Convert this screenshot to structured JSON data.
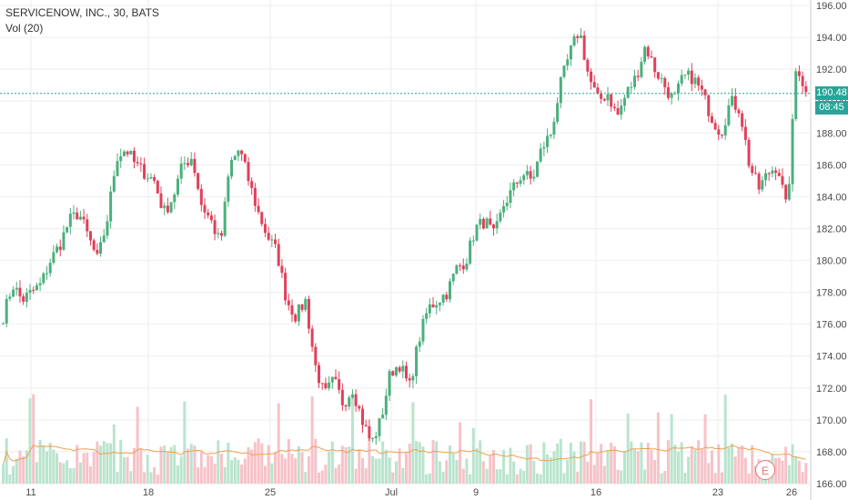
{
  "legend": {
    "symbol_line": "SERVICENOW, INC., 30, BATS",
    "volume_line": "Vol (20)"
  },
  "price_tags": {
    "last_price": "190.48",
    "countdown": "08:45"
  },
  "earnings_badge": "E",
  "colors": {
    "up": "#26a69a",
    "down": "#ef5350",
    "up_candle": "#4caf7d",
    "down_candle": "#e0405a",
    "volume_ma": "#f0a04b",
    "price_line": "#26a69a",
    "grid": "#eeeeee"
  },
  "chart_data": {
    "type": "candlestick",
    "ylim": [
      166,
      196
    ],
    "y_ticks": [
      "196.00",
      "194.00",
      "192.00",
      "190.00",
      "188.00",
      "186.00",
      "184.00",
      "182.00",
      "180.00",
      "178.00",
      "176.00",
      "174.00",
      "172.00",
      "170.00",
      "168.00",
      "166.00"
    ],
    "x_ticks": [
      "11",
      "18",
      "25",
      "Jul",
      "9",
      "16",
      "23",
      "26"
    ],
    "last_price": 190.48,
    "price_path": [
      [
        "11",
        176.5
      ],
      [
        "11",
        178.5
      ],
      [
        "11",
        177.5
      ],
      [
        "11",
        178.0
      ],
      [
        "11",
        178.5
      ],
      [
        "12",
        180.0
      ],
      [
        "12",
        181.0
      ],
      [
        "12",
        182.5
      ],
      [
        "13",
        183.0
      ],
      [
        "13",
        181.5
      ],
      [
        "13",
        180.0
      ],
      [
        "14",
        182.5
      ],
      [
        "14",
        186.5
      ],
      [
        "15",
        187.0
      ],
      [
        "15",
        186.0
      ],
      [
        "15",
        185.5
      ],
      [
        "18",
        185.0
      ],
      [
        "18",
        183.0
      ],
      [
        "18",
        184.0
      ],
      [
        "19",
        186.0
      ],
      [
        "19",
        186.5
      ],
      [
        "20",
        183.5
      ],
      [
        "20",
        182.5
      ],
      [
        "20",
        181.0
      ],
      [
        "21",
        186.0
      ],
      [
        "21",
        187.0
      ],
      [
        "22",
        185.0
      ],
      [
        "22",
        183.0
      ],
      [
        "22",
        181.5
      ],
      [
        "22",
        180.5
      ],
      [
        "25",
        177.5
      ],
      [
        "25",
        176.5
      ],
      [
        "25",
        177.5
      ],
      [
        "26",
        173.5
      ],
      [
        "26",
        171.5
      ],
      [
        "27",
        172.5
      ],
      [
        "27",
        171.0
      ],
      [
        "27",
        172.0
      ],
      [
        "28",
        170.0
      ],
      [
        "28",
        168.5
      ],
      [
        "Jul",
        170.0
      ],
      [
        "Jul",
        173.0
      ],
      [
        "Jul",
        173.5
      ],
      [
        "2",
        172.0
      ],
      [
        "2",
        175.0
      ],
      [
        "3",
        177.0
      ],
      [
        "3",
        177.5
      ],
      [
        "5",
        178.0
      ],
      [
        "5",
        179.5
      ],
      [
        "6",
        180.0
      ],
      [
        "9",
        182.0
      ],
      [
        "9",
        182.5
      ],
      [
        "9",
        181.5
      ],
      [
        "10",
        183.5
      ],
      [
        "10",
        184.5
      ],
      [
        "11",
        185.5
      ],
      [
        "11",
        185.0
      ],
      [
        "12",
        187.0
      ],
      [
        "12",
        188.0
      ],
      [
        "13",
        191.0
      ],
      [
        "13",
        193.0
      ],
      [
        "13",
        194.5
      ],
      [
        "16",
        191.5
      ],
      [
        "16",
        190.0
      ],
      [
        "16",
        190.5
      ],
      [
        "17",
        189.0
      ],
      [
        "17",
        190.5
      ],
      [
        "18",
        191.5
      ],
      [
        "19",
        193.5
      ],
      [
        "19",
        192.0
      ],
      [
        "20",
        191.0
      ],
      [
        "20",
        190.0
      ],
      [
        "20",
        191.5
      ],
      [
        "23",
        191.5
      ],
      [
        "23",
        190.5
      ],
      [
        "23",
        189.0
      ],
      [
        "24",
        188.0
      ],
      [
        "24",
        190.0
      ],
      [
        "24",
        189.5
      ],
      [
        "25",
        186.0
      ],
      [
        "25",
        184.5
      ],
      [
        "25",
        185.5
      ],
      [
        "26",
        186.0
      ],
      [
        "26",
        183.0
      ],
      [
        "26",
        192.5
      ],
      [
        "26",
        190.48
      ]
    ]
  }
}
